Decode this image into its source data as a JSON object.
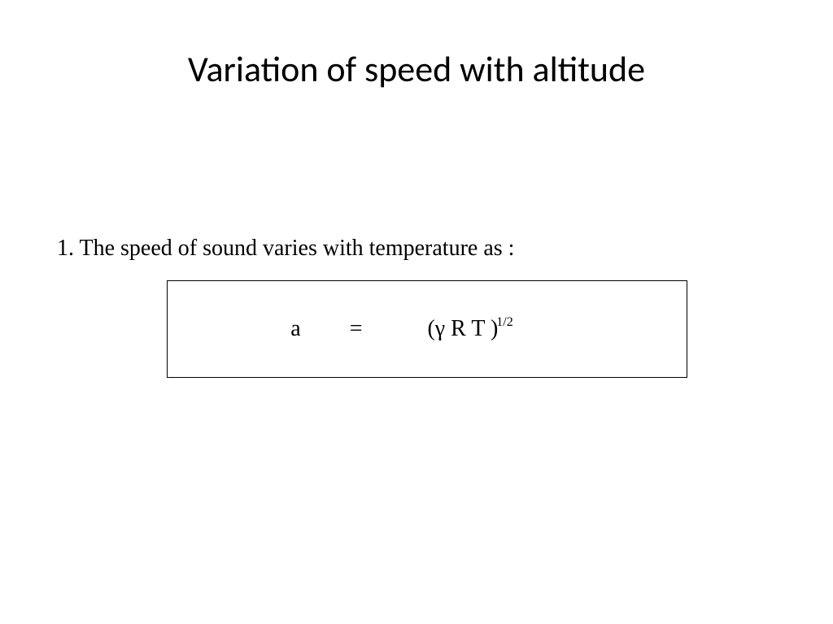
{
  "slide": {
    "title": "Variation of speed with altitude",
    "body_text": "1. The speed of sound varies with temperature as :",
    "equation": {
      "lhs": "a",
      "equals": "=",
      "rhs_base": "(γ R T )",
      "rhs_exponent": "1/2",
      "box_border_color": "#000000",
      "box_background": "#ffffff"
    },
    "styling": {
      "title_fontsize": 44,
      "title_color": "#000000",
      "body_fontsize": 28,
      "body_color": "#000000",
      "body_font_family": "Times New Roman",
      "title_font_family": "Calibri",
      "background_color": "#ffffff",
      "equation_fontsize": 28,
      "exponent_fontsize": 16
    }
  }
}
